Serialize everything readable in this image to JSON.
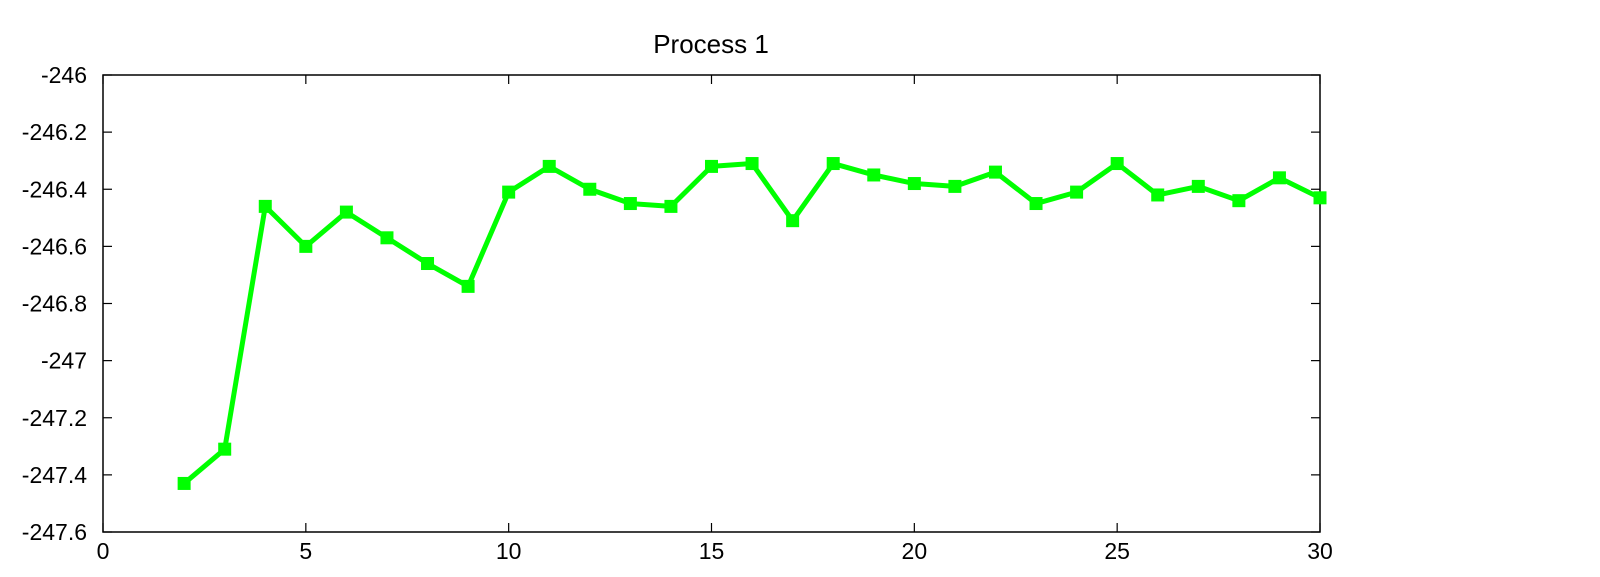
{
  "chart_data": {
    "type": "line",
    "title": "Process 1",
    "xlabel": "",
    "ylabel": "",
    "xlim": [
      0,
      30
    ],
    "ylim": [
      -247.6,
      -246
    ],
    "x_ticks": [
      0,
      5,
      10,
      15,
      20,
      25,
      30
    ],
    "x_tick_labels": [
      "0",
      "5",
      "10",
      "15",
      "20",
      "25",
      "30"
    ],
    "y_ticks": [
      -246,
      -246.2,
      -246.4,
      -246.6,
      -246.8,
      -247,
      -247.2,
      -247.4,
      -247.6
    ],
    "y_tick_labels": [
      "-246",
      "-246.2",
      "-246.4",
      "-246.6",
      "-246.8",
      "-247",
      "-247.2",
      "-247.4",
      "-247.6"
    ],
    "grid": false,
    "legend": "none",
    "series": [
      {
        "color": "#00ff00",
        "marker": "square",
        "x": [
          2,
          3,
          4,
          5,
          6,
          7,
          8,
          9,
          10,
          11,
          12,
          13,
          14,
          15,
          16,
          17,
          18,
          19,
          20,
          21,
          22,
          23,
          24,
          25,
          26,
          27,
          28,
          29,
          30
        ],
        "y": [
          -247.43,
          -247.31,
          -246.46,
          -246.6,
          -246.48,
          -246.57,
          -246.66,
          -246.74,
          -246.41,
          -246.32,
          -246.4,
          -246.45,
          -246.46,
          -246.32,
          -246.31,
          -246.51,
          -246.31,
          -246.35,
          -246.38,
          -246.39,
          -246.34,
          -246.45,
          -246.41,
          -246.31,
          -246.42,
          -246.39,
          -246.44,
          -246.36,
          -246.43
        ]
      }
    ]
  }
}
